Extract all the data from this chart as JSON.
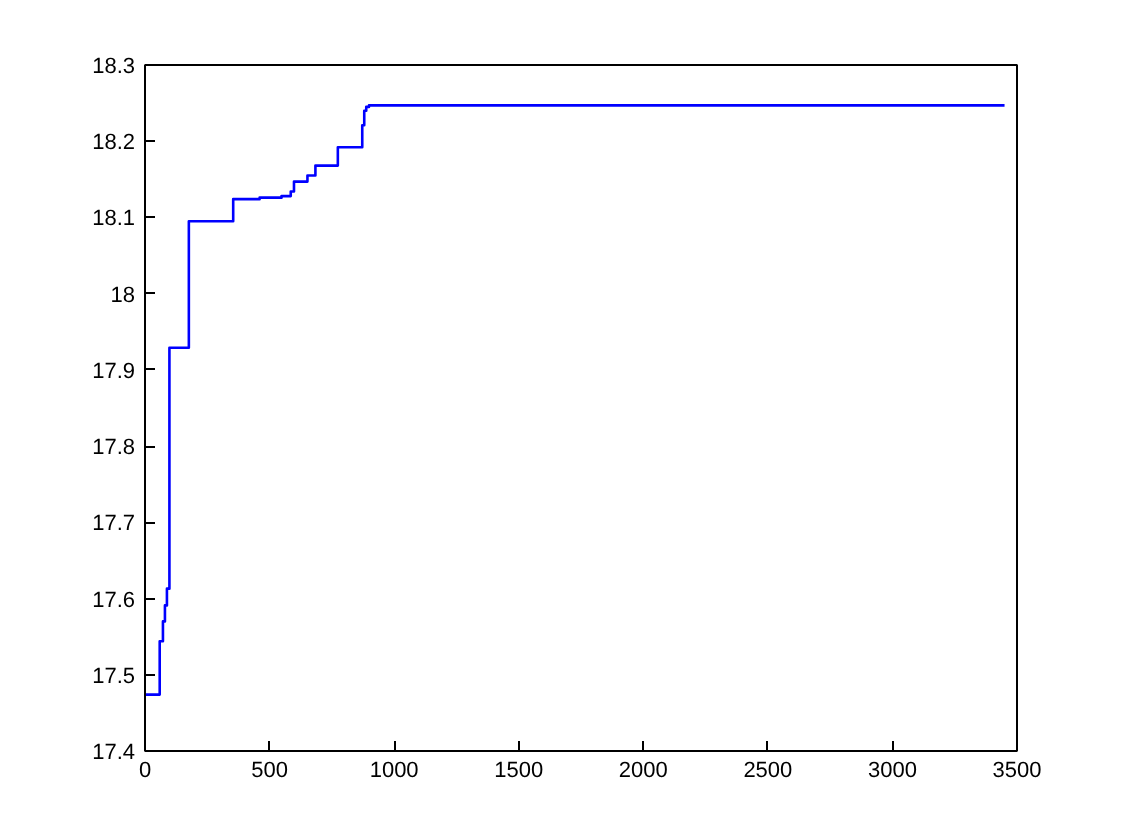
{
  "chart_data": {
    "type": "step",
    "x": [
      0,
      59,
      72,
      80,
      88,
      98,
      176,
      354,
      460,
      548,
      585,
      598,
      652,
      684,
      774,
      872,
      880,
      888,
      899,
      3450
    ],
    "series": [
      {
        "color": "#0000ff",
        "values": [
          17.474,
          17.544,
          17.57,
          17.591,
          17.613,
          17.929,
          18.095,
          18.124,
          18.126,
          18.128,
          18.134,
          18.147,
          18.155,
          18.168,
          18.192,
          18.221,
          18.24,
          18.245,
          18.247,
          18.247
        ]
      }
    ],
    "xlim": [
      0,
      3500
    ],
    "xticks": [
      0,
      500,
      1000,
      1500,
      2000,
      2500,
      3000,
      3500
    ],
    "ylim": [
      17.4,
      18.3
    ],
    "yticks": [
      17.4,
      17.5,
      17.6,
      17.7,
      17.8,
      17.9,
      {
        "value": 18.0,
        "label": "18"
      },
      18.1,
      18.2,
      18.3
    ],
    "grid": false
  }
}
